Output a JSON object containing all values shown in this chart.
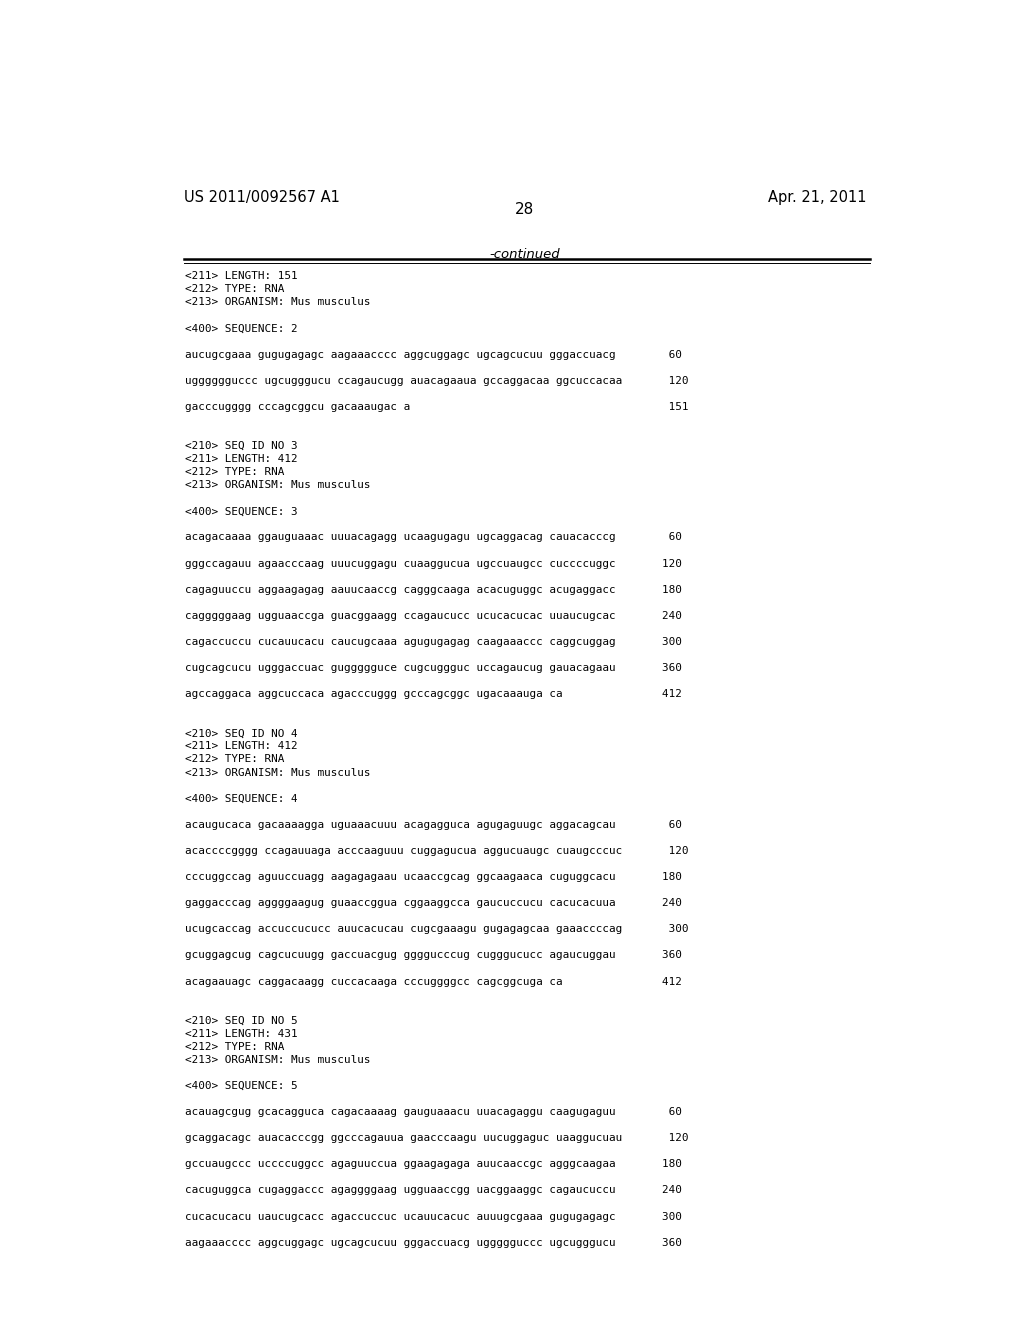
{
  "background_color": "#ffffff",
  "top_left_text": "US 2011/0092567 A1",
  "top_right_text": "Apr. 21, 2011",
  "page_number": "28",
  "continued_text": "-continued",
  "line_entries": [
    "<211> LENGTH: 151",
    "<212> TYPE: RNA",
    "<213> ORGANISM: Mus musculus",
    "",
    "<400> SEQUENCE: 2",
    "",
    "aucugcgaaa gugugagagc aagaaacccc aggcuggagc ugcagcucuu gggaccuacg        60",
    "",
    "ugggggguccc ugcugggucu ccagaucugg auacagaaua gccaggacaa ggcuccacaa       120",
    "",
    "gacccugggg cccagcggcu gacaaaugac a                                       151",
    "",
    "",
    "<210> SEQ ID NO 3",
    "<211> LENGTH: 412",
    "<212> TYPE: RNA",
    "<213> ORGANISM: Mus musculus",
    "",
    "<400> SEQUENCE: 3",
    "",
    "acagacaaaa ggauguaaac uuuacagagg ucaagugagu ugcaggacag cauacacccg        60",
    "",
    "gggccagauu agaacccaag uuucuggagu cuaaggucua ugccuaugcc cuccccuggc       120",
    "",
    "cagaguuccu aggaagagag aauucaaccg cagggcaaga acacuguggc acugaggacc       180",
    "",
    "cagggggaag ugguaaccga guacggaagg ccagaucucc ucucacucac uuaucugcac       240",
    "",
    "cagaccuccu cucauucacu caucugcaaa agugugagag caagaaaccc caggcuggag       300",
    "",
    "cugcagcucu ugggaccuac guggggguce cugcuggguc uccagaucug gauacagaau       360",
    "",
    "agccaggaca aggcuccaca agacccuggg gcccagcggc ugacaaauga ca               412",
    "",
    "",
    "<210> SEQ ID NO 4",
    "<211> LENGTH: 412",
    "<212> TYPE: RNA",
    "<213> ORGANISM: Mus musculus",
    "",
    "<400> SEQUENCE: 4",
    "",
    "acaugucaca gacaaaagga uguaaacuuu acagagguca agugaguugc aggacagcau        60",
    "",
    "acaccccgggg ccagauuaga acccaaguuu cuggagucua aggucuaugc cuaugcccuc       120",
    "",
    "cccuggccag aguuccuagg aagagagaau ucaaccgcag ggcaagaaca cuguggcacu       180",
    "",
    "gaggacccag aggggaagug guaaccggua cggaaggcca gaucuccucu cacucacuua       240",
    "",
    "ucugcaccag accuccucucc auucacucau cugcgaaagu gugagagcaa gaaaccccag       300",
    "",
    "gcuggagcug cagcucuugg gaccuacgug ggggucccug cugggucucc agaucuggau       360",
    "",
    "acagaauagc caggacaagg cuccacaaga cccuggggcc cagcggcuga ca               412",
    "",
    "",
    "<210> SEQ ID NO 5",
    "<211> LENGTH: 431",
    "<212> TYPE: RNA",
    "<213> ORGANISM: Mus musculus",
    "",
    "<400> SEQUENCE: 5",
    "",
    "acauagcgug gcacagguca cagacaaaag gauguaaacu uuacagaggu caagugaguu        60",
    "",
    "gcaggacagc auacacccgg ggcccagauua gaacccaagu uucuggaguc uaaggucuau       120",
    "",
    "gccuaugccc uccccuggcc agaguuccua ggaagagaga auucaaccgc agggcaagaa       180",
    "",
    "cacuguggca cugaggaccc agaggggaag ugguaaccgg uacggaaggc cagaucuccu       240",
    "",
    "cucacucacu uaucugcacc agaccuccuc ucauucacuc auuugcgaaa gugugagagc       300",
    "",
    "aagaaacccc aggcuggagc ugcagcucuu gggaccuacg uggggguccc ugcugggucu       360"
  ]
}
